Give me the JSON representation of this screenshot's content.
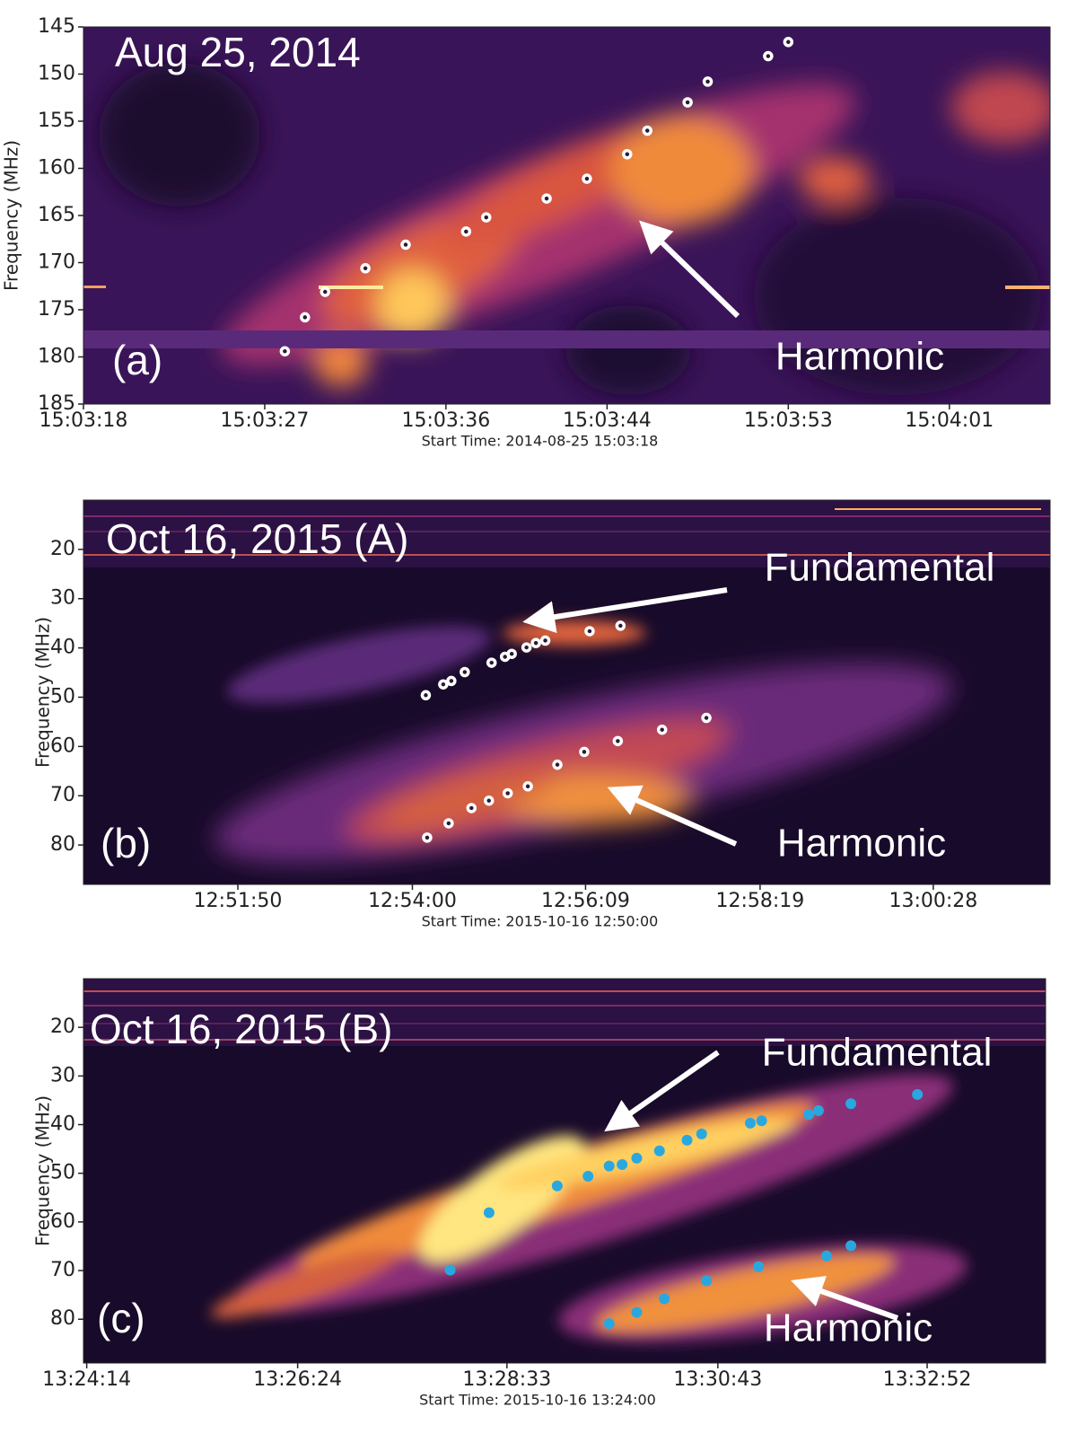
{
  "chart_data": [
    {
      "type": "scatter",
      "title": "Aug 25, 2014",
      "panel_label": "(a)",
      "xlabel": "Start Time: 2014-08-25 15:03:18",
      "ylabel": "Frequency (MHz)",
      "xlim": [
        "15:03:18",
        "15:04:06"
      ],
      "xticks": [
        "15:03:18",
        "15:03:27",
        "15:03:36",
        "15:03:44",
        "15:03:53",
        "15:04:01"
      ],
      "ylim": [
        145,
        185
      ],
      "yticks": [
        145,
        150,
        155,
        160,
        165,
        170,
        175,
        180,
        185
      ],
      "y_inverted": true,
      "series": [
        {
          "name": "Harmonic",
          "color": "#ffffff",
          "x": [
            "15:03:28",
            "15:03:29",
            "15:03:30",
            "15:03:32",
            "15:03:34",
            "15:03:37",
            "15:03:38",
            "15:03:41",
            "15:03:43",
            "15:03:45",
            "15:03:46",
            "15:03:48",
            "15:03:49",
            "15:03:52",
            "15:03:53"
          ],
          "values": [
            179.4,
            175.8,
            173.1,
            170.6,
            168.1,
            166.7,
            165.2,
            163.2,
            161.1,
            158.5,
            156.0,
            153.0,
            150.8,
            148.1,
            146.6
          ]
        }
      ]
    },
    {
      "type": "scatter",
      "title": "Oct 16, 2015 (A)",
      "panel_label": "(b)",
      "xlabel": "Start Time: 2015-10-16 12:50:00",
      "ylabel": "Frequency (MHz)",
      "xlim": [
        "12:49:55",
        "13:01:55"
      ],
      "xticks": [
        "12:51:50",
        "12:54:00",
        "12:56:09",
        "12:58:19",
        "13:00:28"
      ],
      "ylim": [
        10,
        88
      ],
      "yticks": [
        20,
        30,
        40,
        50,
        60,
        70,
        80
      ],
      "y_inverted": true,
      "series": [
        {
          "name": "Fundamental",
          "color": "#ffffff",
          "x": [
            "12:54:10",
            "12:54:23",
            "12:54:29",
            "12:54:39",
            "12:54:59",
            "12:55:09",
            "12:55:14",
            "12:55:25",
            "12:55:32",
            "12:55:39",
            "12:56:12",
            "12:56:35"
          ],
          "values": [
            49.6,
            47.4,
            46.7,
            44.9,
            43.0,
            41.8,
            41.2,
            39.9,
            39.0,
            38.5,
            36.6,
            35.5
          ]
        },
        {
          "name": "Harmonic",
          "color": "#ffffff",
          "x": [
            "12:54:11",
            "12:54:27",
            "12:54:44",
            "12:54:57",
            "12:55:11",
            "12:55:26",
            "12:55:48",
            "12:56:08",
            "12:56:33",
            "12:57:06",
            "12:57:39"
          ],
          "values": [
            78.5,
            75.6,
            72.5,
            71.0,
            69.5,
            68.1,
            63.7,
            61.1,
            58.9,
            56.6,
            54.2
          ]
        }
      ]
    },
    {
      "type": "scatter",
      "title": "Oct 16, 2015 (B)",
      "panel_label": "(c)",
      "xlabel": "Start Time: 2015-10-16 13:24:00",
      "ylabel": "Frequency (MHz)",
      "xlim": [
        "13:24:12",
        "13:34:05"
      ],
      "xticks": [
        "13:24:14",
        "13:26:24",
        "13:28:33",
        "13:30:43",
        "13:32:52"
      ],
      "ylim": [
        10,
        89
      ],
      "yticks": [
        20,
        30,
        40,
        50,
        60,
        70,
        80
      ],
      "y_inverted": true,
      "series": [
        {
          "name": "Fundamental",
          "color": "#29a8e0",
          "x": [
            "13:28:22",
            "13:29:04",
            "13:29:23",
            "13:29:36",
            "13:29:44",
            "13:29:53",
            "13:30:07",
            "13:30:24",
            "13:30:33",
            "13:31:03",
            "13:31:10",
            "13:31:39",
            "13:31:45",
            "13:32:05",
            "13:32:46"
          ],
          "values": [
            58.1,
            52.6,
            50.6,
            48.5,
            48.2,
            46.9,
            45.4,
            43.2,
            41.9,
            39.7,
            39.2,
            37.9,
            37.1,
            35.7,
            33.8
          ]
        },
        {
          "name": "Harmonic",
          "color": "#29a8e0",
          "x": [
            "13:27:58",
            "13:29:36",
            "13:29:53",
            "13:30:10",
            "13:30:36",
            "13:31:08",
            "13:31:50",
            "13:32:05"
          ],
          "values": [
            69.9,
            80.9,
            78.6,
            75.8,
            72.1,
            69.2,
            67.0,
            64.9
          ]
        }
      ]
    }
  ]
}
